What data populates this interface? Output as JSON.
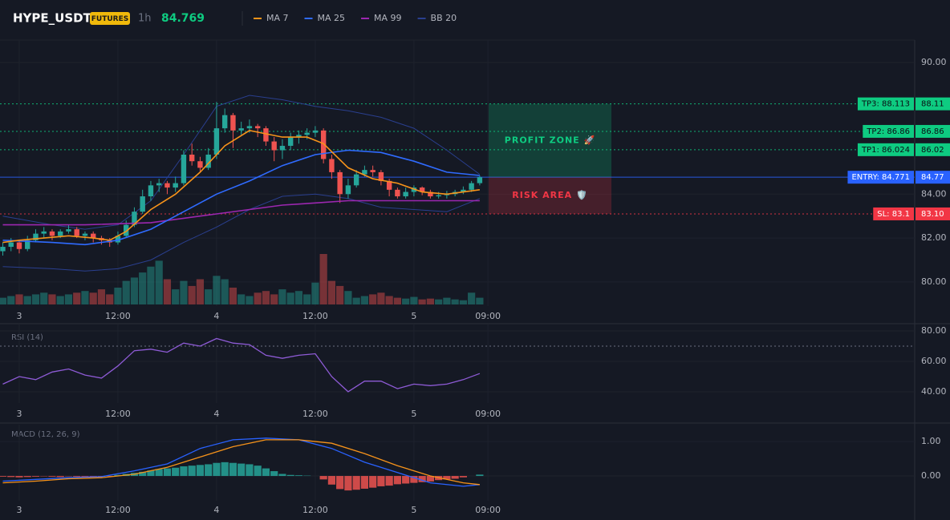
{
  "header": {
    "symbol": "HYPE_USDT",
    "badge": "FUTURES",
    "interval": "1h",
    "last_price": 84.769
  },
  "chart_data": [
    {
      "type": "candlestick",
      "x": [
        -2,
        -1,
        0,
        1,
        2,
        3,
        4,
        5,
        6,
        7,
        8,
        9,
        10,
        11,
        12,
        13,
        14,
        15,
        16,
        17,
        18,
        19,
        20,
        21,
        22,
        23,
        24,
        25,
        26,
        27,
        28,
        29,
        30,
        31,
        32,
        33,
        34,
        35,
        36,
        37,
        38,
        39,
        40,
        41,
        42,
        43,
        44,
        45,
        46,
        47,
        48,
        49,
        50,
        51,
        52,
        53,
        54,
        55,
        56
      ],
      "open": [
        81.4,
        81.6,
        81.8,
        81.5,
        81.9,
        82.2,
        82.3,
        82.1,
        82.3,
        82.4,
        82.1,
        82.2,
        82.0,
        81.9,
        81.8,
        82.1,
        82.6,
        83.2,
        83.9,
        84.4,
        84.5,
        84.3,
        84.5,
        85.8,
        85.5,
        85.2,
        85.8,
        87.0,
        87.6,
        86.9,
        87.0,
        87.1,
        87.0,
        86.4,
        86.0,
        86.2,
        86.6,
        86.7,
        86.8,
        86.9,
        85.6,
        85.0,
        84.0,
        84.4,
        84.9,
        85.1,
        85.0,
        84.6,
        84.2,
        83.9,
        84.1,
        84.3,
        84.1,
        83.9,
        83.95,
        84.0,
        84.1,
        84.2,
        84.5
      ],
      "high": [
        81.8,
        82.0,
        81.9,
        82.1,
        82.4,
        82.5,
        82.4,
        82.4,
        82.6,
        82.5,
        82.3,
        82.3,
        82.1,
        82.0,
        82.3,
        82.8,
        83.4,
        84.2,
        84.6,
        84.7,
        84.6,
        84.8,
        86.0,
        86.3,
        85.7,
        86.1,
        88.2,
        87.9,
        87.7,
        87.3,
        87.4,
        87.2,
        87.1,
        86.6,
        86.5,
        86.8,
        86.9,
        87.0,
        87.1,
        87.0,
        85.8,
        85.1,
        84.7,
        85.1,
        85.3,
        85.3,
        85.1,
        84.7,
        84.3,
        84.3,
        84.4,
        84.35,
        84.2,
        84.1,
        84.15,
        84.2,
        84.35,
        84.6,
        84.85
      ],
      "low": [
        81.2,
        81.4,
        81.3,
        81.4,
        81.8,
        82.0,
        81.9,
        82.0,
        82.2,
        82.0,
        81.9,
        81.8,
        81.7,
        81.6,
        81.7,
        82.0,
        82.5,
        83.1,
        83.7,
        84.1,
        84.0,
        84.1,
        84.4,
        85.3,
        85.0,
        85.1,
        85.6,
        86.8,
        86.1,
        86.7,
        86.8,
        86.6,
        86.2,
        85.5,
        85.6,
        86.0,
        86.3,
        86.5,
        86.6,
        85.4,
        84.7,
        83.6,
        83.8,
        84.3,
        84.8,
        84.8,
        84.4,
        83.9,
        83.8,
        83.8,
        83.9,
        83.95,
        83.8,
        83.8,
        83.8,
        83.9,
        84.0,
        84.1,
        84.4
      ],
      "close": [
        81.6,
        81.8,
        81.5,
        81.9,
        82.2,
        82.3,
        82.1,
        82.3,
        82.4,
        82.1,
        82.2,
        82.0,
        81.9,
        81.8,
        82.1,
        82.6,
        83.2,
        83.9,
        84.4,
        84.5,
        84.3,
        84.5,
        85.8,
        85.5,
        85.2,
        85.8,
        87.0,
        87.6,
        86.9,
        87.0,
        87.1,
        87.0,
        86.4,
        86.0,
        86.2,
        86.6,
        86.7,
        86.8,
        86.9,
        85.6,
        85.0,
        84.0,
        84.4,
        84.9,
        85.1,
        85.0,
        84.6,
        84.2,
        83.9,
        84.1,
        84.3,
        84.1,
        83.9,
        83.95,
        84.0,
        84.1,
        84.2,
        84.5,
        84.77
      ],
      "volume": [
        8,
        10,
        12,
        10,
        12,
        14,
        12,
        10,
        12,
        14,
        16,
        14,
        18,
        12,
        20,
        28,
        32,
        38,
        45,
        52,
        30,
        18,
        28,
        22,
        30,
        18,
        34,
        30,
        20,
        12,
        10,
        14,
        16,
        12,
        18,
        14,
        16,
        12,
        26,
        60,
        28,
        22,
        16,
        8,
        10,
        12,
        14,
        10,
        8,
        7,
        9,
        6,
        7,
        6,
        8,
        6,
        5,
        14,
        8
      ],
      "up_color": "#26a69a",
      "down_color": "#ef5350",
      "xlim": [
        -2.34,
        108.9
      ],
      "xticks": [
        {
          "value": 0,
          "label": "3"
        },
        {
          "value": 12,
          "label": "12:00"
        },
        {
          "value": 24,
          "label": "4"
        },
        {
          "value": 36,
          "label": "12:00"
        },
        {
          "value": 48,
          "label": "5"
        },
        {
          "value": 57,
          "label": "09:00"
        }
      ],
      "ylim": [
        78.9,
        91.02
      ],
      "yticks": [
        {
          "value": 80,
          "label": "80.00"
        },
        {
          "value": 82,
          "label": "82.00"
        },
        {
          "value": 84,
          "label": "84.00"
        },
        {
          "value": 90,
          "label": "90.00"
        }
      ],
      "grid": true,
      "series": [
        {
          "name": "MA 7",
          "color": "#f7931a",
          "x": [
            -2,
            0,
            3,
            6,
            9,
            11,
            13,
            16,
            19,
            22,
            25,
            28,
            32,
            35,
            37,
            40,
            43,
            46,
            49,
            52,
            56
          ],
          "values": [
            81.8,
            81.9,
            82.0,
            82.1,
            82.0,
            81.9,
            82.3,
            83.3,
            84.0,
            85.0,
            86.2,
            86.9,
            86.6,
            86.6,
            86.3,
            85.2,
            84.7,
            84.5,
            84.1,
            84.0,
            84.2
          ]
        },
        {
          "name": "MA 25",
          "color": "#2f6bff",
          "x": [
            -2,
            4,
            8,
            12,
            16,
            20,
            24,
            28,
            32,
            36,
            40,
            44,
            48,
            52,
            56
          ],
          "values": [
            81.9,
            81.8,
            81.7,
            81.9,
            82.4,
            83.2,
            84.0,
            84.6,
            85.3,
            85.8,
            86.0,
            85.9,
            85.5,
            85.0,
            84.85
          ]
        },
        {
          "name": "MA 99",
          "color": "#9c27b0",
          "x": [
            -2,
            8,
            16,
            24,
            32,
            36,
            40,
            48,
            56
          ],
          "values": [
            82.6,
            82.6,
            82.7,
            83.1,
            83.5,
            83.6,
            83.7,
            83.7,
            83.7
          ]
        },
        {
          "name": "BB 20",
          "color": "#2a3f8f",
          "x": [
            -2,
            4,
            8,
            12,
            16,
            20,
            24,
            28,
            32,
            36,
            40,
            44,
            48,
            52,
            56
          ],
          "upper": [
            83.0,
            82.6,
            82.4,
            82.6,
            83.7,
            85.8,
            88.0,
            88.5,
            88.3,
            88.0,
            87.8,
            87.5,
            87.0,
            86.0,
            84.9
          ],
          "lower": [
            80.7,
            80.6,
            80.5,
            80.6,
            81.0,
            81.8,
            82.5,
            83.3,
            83.9,
            84.0,
            83.8,
            83.4,
            83.3,
            83.2,
            83.8
          ]
        }
      ],
      "levels": [
        {
          "label": "TP3: 88.113",
          "value": 88.113,
          "axis_label": "88.11",
          "color": "#0ecb81",
          "style": "dotted"
        },
        {
          "label": "TP2: 86.86",
          "value": 86.86,
          "axis_label": "86.86",
          "color": "#0ecb81",
          "style": "dotted"
        },
        {
          "label": "TP1: 86.024",
          "value": 86.024,
          "axis_label": "86.02",
          "color": "#0ecb81",
          "style": "dotted"
        },
        {
          "label": "ENTRY: 84.771",
          "value": 84.771,
          "axis_label": "84.77",
          "color": "#2962ff",
          "style": "solid"
        },
        {
          "label": "SL: 83.1",
          "value": 83.1,
          "axis_label": "83.10",
          "color": "#f23645",
          "style": "dotted"
        }
      ],
      "zones": [
        {
          "label": "PROFIT ZONE 🚀",
          "color": "#0ecb81"
        },
        {
          "label": "RISK AREA 🛡️",
          "color": "#f23645"
        }
      ]
    },
    {
      "type": "line",
      "title": "RSI (14)",
      "xlim": [
        -2.34,
        108.9
      ],
      "xticks": [
        {
          "value": 0,
          "label": "3"
        },
        {
          "value": 12,
          "label": "12:00"
        },
        {
          "value": 24,
          "label": "4"
        },
        {
          "value": 36,
          "label": "12:00"
        },
        {
          "value": 48,
          "label": "5"
        },
        {
          "value": 57,
          "label": "09:00"
        }
      ],
      "ylim": [
        32.6,
        84.2
      ],
      "yticks": [
        {
          "value": 40,
          "label": "40.00"
        },
        {
          "value": 60,
          "label": "60.00"
        },
        {
          "value": 80,
          "label": "80.00"
        }
      ],
      "grid": true,
      "ref_line": 70,
      "series": [
        {
          "color": "#8e5bd6",
          "x": [
            -2,
            0,
            2,
            4,
            6,
            8,
            10,
            12,
            14,
            16,
            18,
            20,
            22,
            24,
            26,
            28,
            30,
            32,
            34,
            36,
            38,
            40,
            42,
            44,
            46,
            48,
            50,
            52,
            54,
            56
          ],
          "values": [
            45,
            50,
            48,
            53,
            55,
            51,
            49,
            57,
            67,
            68,
            66,
            72,
            70,
            75,
            72,
            71,
            64,
            62,
            64,
            65,
            50,
            40,
            47,
            47,
            42,
            45,
            44,
            45,
            48,
            52
          ]
        }
      ]
    },
    {
      "type": "line",
      "title": "MACD (12, 26, 9)",
      "xlim": [
        -2.34,
        108.9
      ],
      "xticks": [
        {
          "value": 0,
          "label": "3"
        },
        {
          "value": 12,
          "label": "12:00"
        },
        {
          "value": 24,
          "label": "4"
        },
        {
          "value": 36,
          "label": "12:00"
        },
        {
          "value": 48,
          "label": "5"
        },
        {
          "value": 57,
          "label": "09:00"
        }
      ],
      "ylim": [
        -0.72,
        1.49
      ],
      "yticks": [
        {
          "value": 0,
          "label": "0.00"
        },
        {
          "value": 1,
          "label": "1.00"
        }
      ],
      "grid": true,
      "histogram": {
        "up_color": "#26a69a",
        "down_color": "#ef5350",
        "x": [
          -2,
          -1,
          0,
          1,
          2,
          3,
          4,
          5,
          6,
          7,
          8,
          9,
          10,
          11,
          12,
          13,
          14,
          15,
          16,
          17,
          18,
          19,
          20,
          21,
          22,
          23,
          24,
          25,
          26,
          27,
          28,
          29,
          30,
          31,
          32,
          33,
          34,
          35,
          36,
          37,
          38,
          39,
          40,
          41,
          42,
          43,
          44,
          45,
          46,
          47,
          48,
          49,
          50,
          51,
          52,
          53,
          54,
          55,
          56
        ],
        "values": [
          -0.02,
          -0.03,
          -0.04,
          -0.03,
          -0.02,
          -0.01,
          -0.02,
          -0.03,
          -0.01,
          -0.02,
          -0.02,
          -0.03,
          -0.02,
          -0.01,
          0.03,
          0.06,
          0.09,
          0.12,
          0.16,
          0.2,
          0.22,
          0.24,
          0.28,
          0.3,
          0.32,
          0.34,
          0.38,
          0.4,
          0.38,
          0.36,
          0.34,
          0.3,
          0.22,
          0.14,
          0.06,
          0.03,
          0.02,
          0.01,
          0.0,
          -0.1,
          -0.25,
          -0.38,
          -0.42,
          -0.4,
          -0.37,
          -0.34,
          -0.3,
          -0.28,
          -0.24,
          -0.22,
          -0.2,
          -0.18,
          -0.16,
          -0.12,
          -0.1,
          -0.08,
          -0.04,
          0.0,
          0.04
        ]
      },
      "series": [
        {
          "color": "#2962ff",
          "x": [
            -2,
            2,
            6,
            10,
            14,
            18,
            22,
            26,
            30,
            34,
            38,
            42,
            46,
            50,
            54,
            56
          ],
          "values": [
            -0.15,
            -0.1,
            -0.05,
            -0.02,
            0.15,
            0.35,
            0.8,
            1.05,
            1.1,
            1.05,
            0.8,
            0.4,
            0.1,
            -0.2,
            -0.3,
            -0.25
          ]
        },
        {
          "color": "#f7931a",
          "x": [
            -2,
            2,
            6,
            10,
            14,
            18,
            22,
            26,
            30,
            34,
            38,
            42,
            46,
            50,
            54,
            56
          ],
          "values": [
            -0.2,
            -0.15,
            -0.08,
            -0.05,
            0.05,
            0.25,
            0.55,
            0.85,
            1.05,
            1.05,
            0.95,
            0.65,
            0.3,
            0.0,
            -0.2,
            -0.25
          ]
        }
      ]
    }
  ]
}
